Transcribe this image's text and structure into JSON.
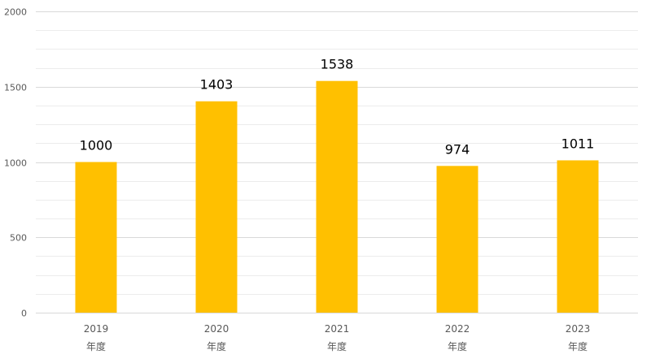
{
  "chart_data": {
    "type": "bar",
    "categories": [
      {
        "year": "2019",
        "unit": "年度"
      },
      {
        "year": "2020",
        "unit": "年度"
      },
      {
        "year": "2021",
        "unit": "年度"
      },
      {
        "year": "2022",
        "unit": "年度"
      },
      {
        "year": "2023",
        "unit": "年度"
      }
    ],
    "values": [
      1000,
      1403,
      1538,
      974,
      1011
    ],
    "data_labels": [
      "1000",
      "1403",
      "1538",
      "974",
      "1011"
    ],
    "ylim": [
      0,
      2000
    ],
    "yticks": [
      "0",
      "500",
      "1000",
      "1500",
      "2000"
    ],
    "ytick_values": [
      0,
      500,
      1000,
      1500,
      2000
    ],
    "minor_step": 125,
    "grid": true,
    "legend": "none",
    "bar_color": "#FFC000"
  }
}
